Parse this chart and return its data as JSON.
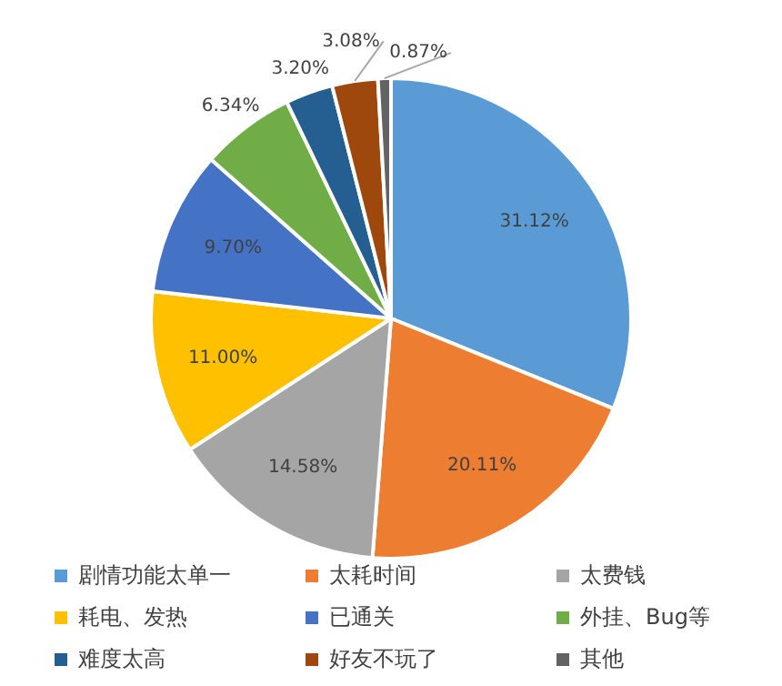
{
  "chart_data": {
    "type": "pie",
    "categories": [
      "剧情功能太单一",
      "太耗时间",
      "太费钱",
      "耗电、发热",
      "已通关",
      "外挂、Bug等",
      "难度太高",
      "好友不玩了",
      "其他"
    ],
    "values": [
      31.12,
      20.11,
      14.58,
      11.0,
      9.7,
      6.34,
      3.2,
      3.08,
      0.87
    ],
    "colors": [
      "#5b9bd5",
      "#ed7d31",
      "#a5a5a5",
      "#ffc000",
      "#4472c4",
      "#70ad47",
      "#255e91",
      "#9e480e",
      "#636363"
    ],
    "value_labels": [
      "31.12%",
      "20.11%",
      "14.58%",
      "11.00%",
      "9.70%",
      "6.34%",
      "3.20%",
      "3.08%",
      "0.87%"
    ],
    "legend": "bottom"
  }
}
